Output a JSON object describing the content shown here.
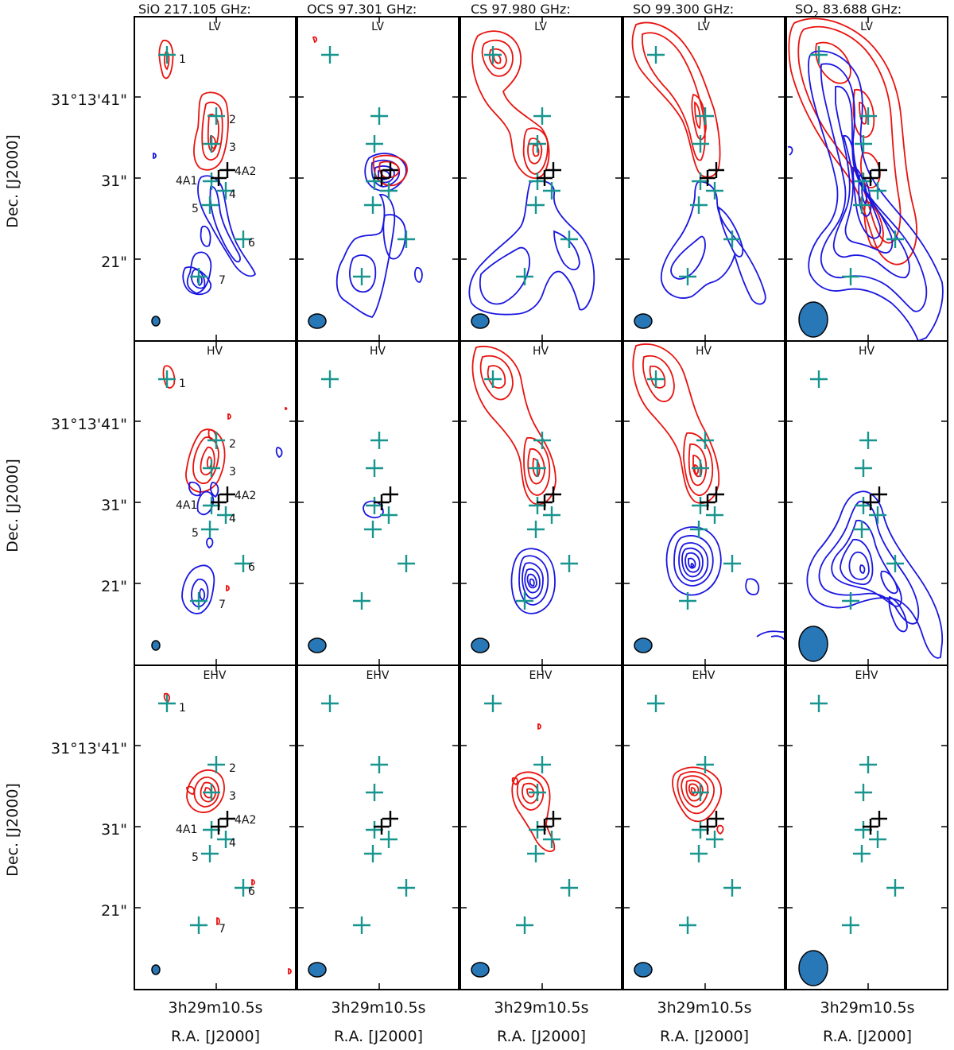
{
  "columns": [
    {
      "id": "sio",
      "title": "SiO 217.105 GHz:"
    },
    {
      "id": "ocs",
      "title": "OCS 97.301 GHz:"
    },
    {
      "id": "cs",
      "title": "CS 97.980 GHz:"
    },
    {
      "id": "so",
      "title": "SO 99.300 GHz:"
    },
    {
      "id": "so2",
      "title_main": "SO",
      "title_sub": "2",
      "title_rest": " 83.688 GHz:"
    }
  ],
  "rows": [
    {
      "id": "lv",
      "label": "LV"
    },
    {
      "id": "hv",
      "label": "HV"
    },
    {
      "id": "ehv",
      "label": "EHV"
    }
  ],
  "axes": {
    "dec_ticks": [
      "31°13'41\"",
      "31\"",
      "21\""
    ],
    "dec_label": "Dec. [J2000]",
    "ra_tick": "3h29m10.5s",
    "ra_label": "R.A. [J2000]"
  },
  "source_labels": {
    "s1": "1",
    "s2": "2",
    "s3": "3",
    "s4": "4",
    "s5": "5",
    "s6": "6",
    "s7": "7",
    "s4a1": "4A1",
    "s4a2": "4A2"
  },
  "colors": {
    "redshifted": "#e8130f",
    "blueshifted": "#1a16e0",
    "marker": "#17958e",
    "protostar": "#000000",
    "beam": "#2877b7"
  }
}
